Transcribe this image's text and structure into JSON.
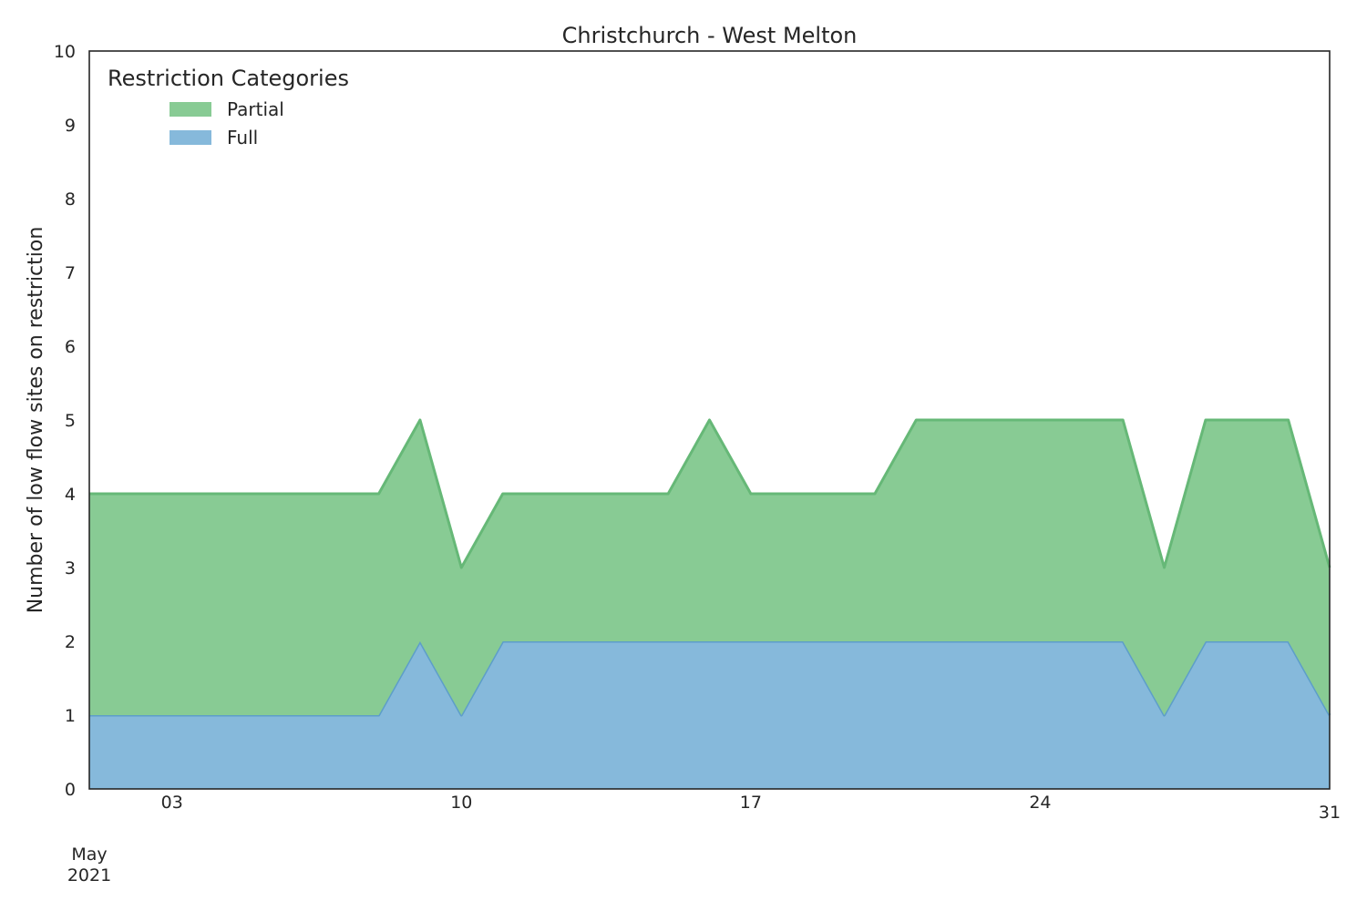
{
  "chart_data": {
    "type": "area",
    "stacked": true,
    "title": "Christchurch - West Melton",
    "ylabel": "Number of low flow sites on restriction",
    "xlabel": "",
    "x": [
      "2021-05-01",
      "2021-05-02",
      "2021-05-03",
      "2021-05-04",
      "2021-05-05",
      "2021-05-06",
      "2021-05-07",
      "2021-05-08",
      "2021-05-09",
      "2021-05-10",
      "2021-05-11",
      "2021-05-12",
      "2021-05-13",
      "2021-05-14",
      "2021-05-15",
      "2021-05-16",
      "2021-05-17",
      "2021-05-18",
      "2021-05-19",
      "2021-05-20",
      "2021-05-21",
      "2021-05-22",
      "2021-05-23",
      "2021-05-24",
      "2021-05-25",
      "2021-05-26",
      "2021-05-27",
      "2021-05-28",
      "2021-05-29",
      "2021-05-30",
      "2021-05-31"
    ],
    "xlim": [
      "2021-05-01",
      "2021-05-31"
    ],
    "ylim": [
      0,
      10
    ],
    "yticks": [
      "0",
      "1",
      "2",
      "3",
      "4",
      "5",
      "6",
      "7",
      "8",
      "9",
      "10"
    ],
    "xticks": [
      {
        "date": "2021-05-03",
        "label": "03"
      },
      {
        "date": "2021-05-10",
        "label": "10"
      },
      {
        "date": "2021-05-17",
        "label": "17"
      },
      {
        "date": "2021-05-24",
        "label": "24"
      },
      {
        "date": "2021-05-31",
        "label": "31"
      }
    ],
    "x_month_label": [
      "May",
      "2021"
    ],
    "series": [
      {
        "name": "Full",
        "color": "#86b9db",
        "edge": "#5d9ec9",
        "values": [
          1,
          1,
          1,
          1,
          1,
          1,
          1,
          1,
          2,
          1,
          2,
          2,
          2,
          2,
          2,
          2,
          2,
          2,
          2,
          2,
          2,
          2,
          2,
          2,
          2,
          2,
          1,
          2,
          2,
          2,
          1
        ]
      },
      {
        "name": "Partial",
        "color": "#88cb94",
        "edge": "#66b877",
        "values": [
          3,
          3,
          3,
          3,
          3,
          3,
          3,
          3,
          3,
          2,
          2,
          2,
          2,
          2,
          2,
          3,
          2,
          2,
          2,
          2,
          3,
          3,
          3,
          3,
          3,
          3,
          2,
          3,
          3,
          3,
          2
        ]
      }
    ],
    "legend": {
      "title": "Restriction Categories",
      "position": "top-left",
      "entries": [
        "Partial",
        "Full"
      ]
    },
    "grid": false
  }
}
